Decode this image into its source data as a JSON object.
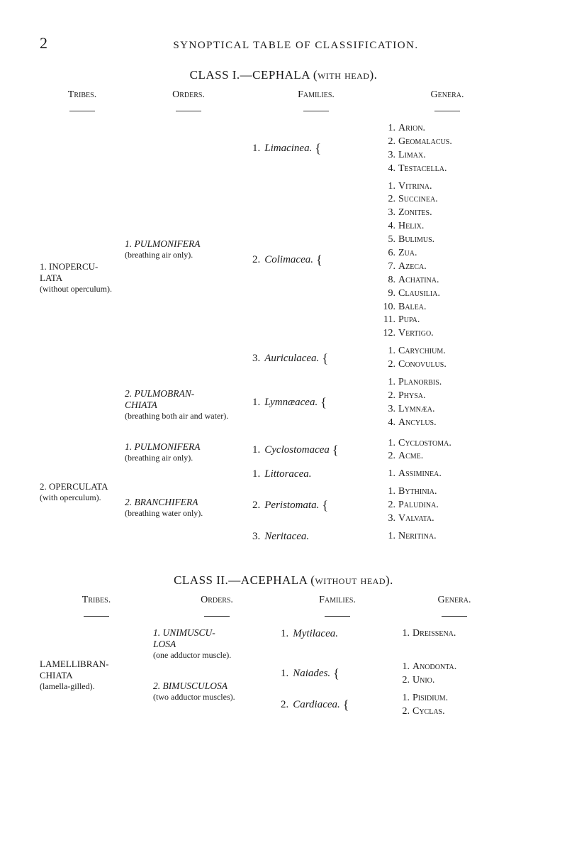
{
  "page_number": "2",
  "running_title": "SYNOPTICAL TABLE OF CLASSIFICATION.",
  "class1": {
    "title": "CLASS I.—CEPHALA (with head).",
    "headers": {
      "tribes": "Tribes.",
      "orders": "Orders.",
      "families": "Families.",
      "genera": "Genera."
    },
    "tribes": [
      {
        "name": "1. INOPERCU-\nLATA",
        "note": "(without operculum).",
        "orders": [
          {
            "name": "1. PULMONIFERA",
            "note": "(breathing air only).",
            "families": [
              {
                "num": "1.",
                "name": "Limacinea.",
                "genera": [
                  {
                    "n": "1.",
                    "g": "Arion."
                  },
                  {
                    "n": "2.",
                    "g": "Geomalacus."
                  },
                  {
                    "n": "3.",
                    "g": "Limax."
                  },
                  {
                    "n": "4.",
                    "g": "Testacella."
                  }
                ]
              },
              {
                "num": "2.",
                "name": "Colimacea.",
                "genera": [
                  {
                    "n": "1.",
                    "g": "Vitrina."
                  },
                  {
                    "n": "2.",
                    "g": "Succinea."
                  },
                  {
                    "n": "3.",
                    "g": "Zonites."
                  },
                  {
                    "n": "4.",
                    "g": "Helix."
                  },
                  {
                    "n": "5.",
                    "g": "Bulimus."
                  },
                  {
                    "n": "6.",
                    "g": "Zua."
                  },
                  {
                    "n": "7.",
                    "g": "Azeca."
                  },
                  {
                    "n": "8.",
                    "g": "Achatina."
                  },
                  {
                    "n": "9.",
                    "g": "Clausilia."
                  },
                  {
                    "n": "10.",
                    "g": "Balea."
                  },
                  {
                    "n": "11.",
                    "g": "Pupa."
                  },
                  {
                    "n": "12.",
                    "g": "Vertigo."
                  }
                ]
              },
              {
                "num": "3.",
                "name": "Auriculacea.",
                "genera": [
                  {
                    "n": "1.",
                    "g": "Carychium."
                  },
                  {
                    "n": "2.",
                    "g": "Conovulus."
                  }
                ]
              }
            ]
          },
          {
            "name": "2. PULMOBRAN-\nCHIATA",
            "note": "(breathing both air and water).",
            "families": [
              {
                "num": "1.",
                "name": "Lymnæacea.",
                "genera": [
                  {
                    "n": "1.",
                    "g": "Planorbis."
                  },
                  {
                    "n": "2.",
                    "g": "Physa."
                  },
                  {
                    "n": "3.",
                    "g": "Lymnæa."
                  },
                  {
                    "n": "4.",
                    "g": "Ancylus."
                  }
                ]
              }
            ]
          }
        ]
      },
      {
        "name": "2. OPERCULATA",
        "note": "(with operculum).",
        "orders": [
          {
            "name": "1. PULMONIFERA",
            "note": "(breathing air only).",
            "families": [
              {
                "num": "1.",
                "name": "Cyclostomacea",
                "genera": [
                  {
                    "n": "1.",
                    "g": "Cyclostoma."
                  },
                  {
                    "n": "2.",
                    "g": "Acme."
                  }
                ]
              }
            ]
          },
          {
            "name": "2. BRANCHIFERA",
            "note": "(breathing water only).",
            "families": [
              {
                "num": "1.",
                "name": "Littoracea.",
                "genera": [
                  {
                    "n": "1.",
                    "g": "Assiminea."
                  }
                ]
              },
              {
                "num": "2.",
                "name": "Peristomata.",
                "genera": [
                  {
                    "n": "1.",
                    "g": "Bythinia."
                  },
                  {
                    "n": "2.",
                    "g": "Paludina."
                  },
                  {
                    "n": "3.",
                    "g": "Valvata."
                  }
                ]
              },
              {
                "num": "3.",
                "name": "Neritacea.",
                "genera": [
                  {
                    "n": "1.",
                    "g": "Neritina."
                  }
                ]
              }
            ]
          }
        ]
      }
    ]
  },
  "class2": {
    "title": "CLASS II.—ACEPHALA (without head).",
    "headers": {
      "tribes": "Tribes.",
      "orders": "Orders.",
      "families": "Families.",
      "genera": "Genera."
    },
    "tribes": [
      {
        "name": "LAMELLIBRAN-\nCHIATA",
        "note": "(lamella-gilled).",
        "orders": [
          {
            "name": "1. UNIMUSCU-\nLOSA",
            "note": "(one adductor muscle).",
            "families": [
              {
                "num": "1.",
                "name": "Mytilacea.",
                "genera": [
                  {
                    "n": "1.",
                    "g": "Dreissena."
                  }
                ]
              }
            ]
          },
          {
            "name": "2. BIMUSCULOSA",
            "note": "(two adductor muscles).",
            "families": [
              {
                "num": "1.",
                "name": "Naiades.",
                "genera": [
                  {
                    "n": "1.",
                    "g": "Anodonta."
                  },
                  {
                    "n": "2.",
                    "g": "Unio."
                  }
                ]
              },
              {
                "num": "2.",
                "name": "Cardiacea.",
                "genera": [
                  {
                    "n": "1.",
                    "g": "Pisidium."
                  },
                  {
                    "n": "2.",
                    "g": "Cyclas."
                  }
                ]
              }
            ]
          }
        ]
      }
    ]
  }
}
